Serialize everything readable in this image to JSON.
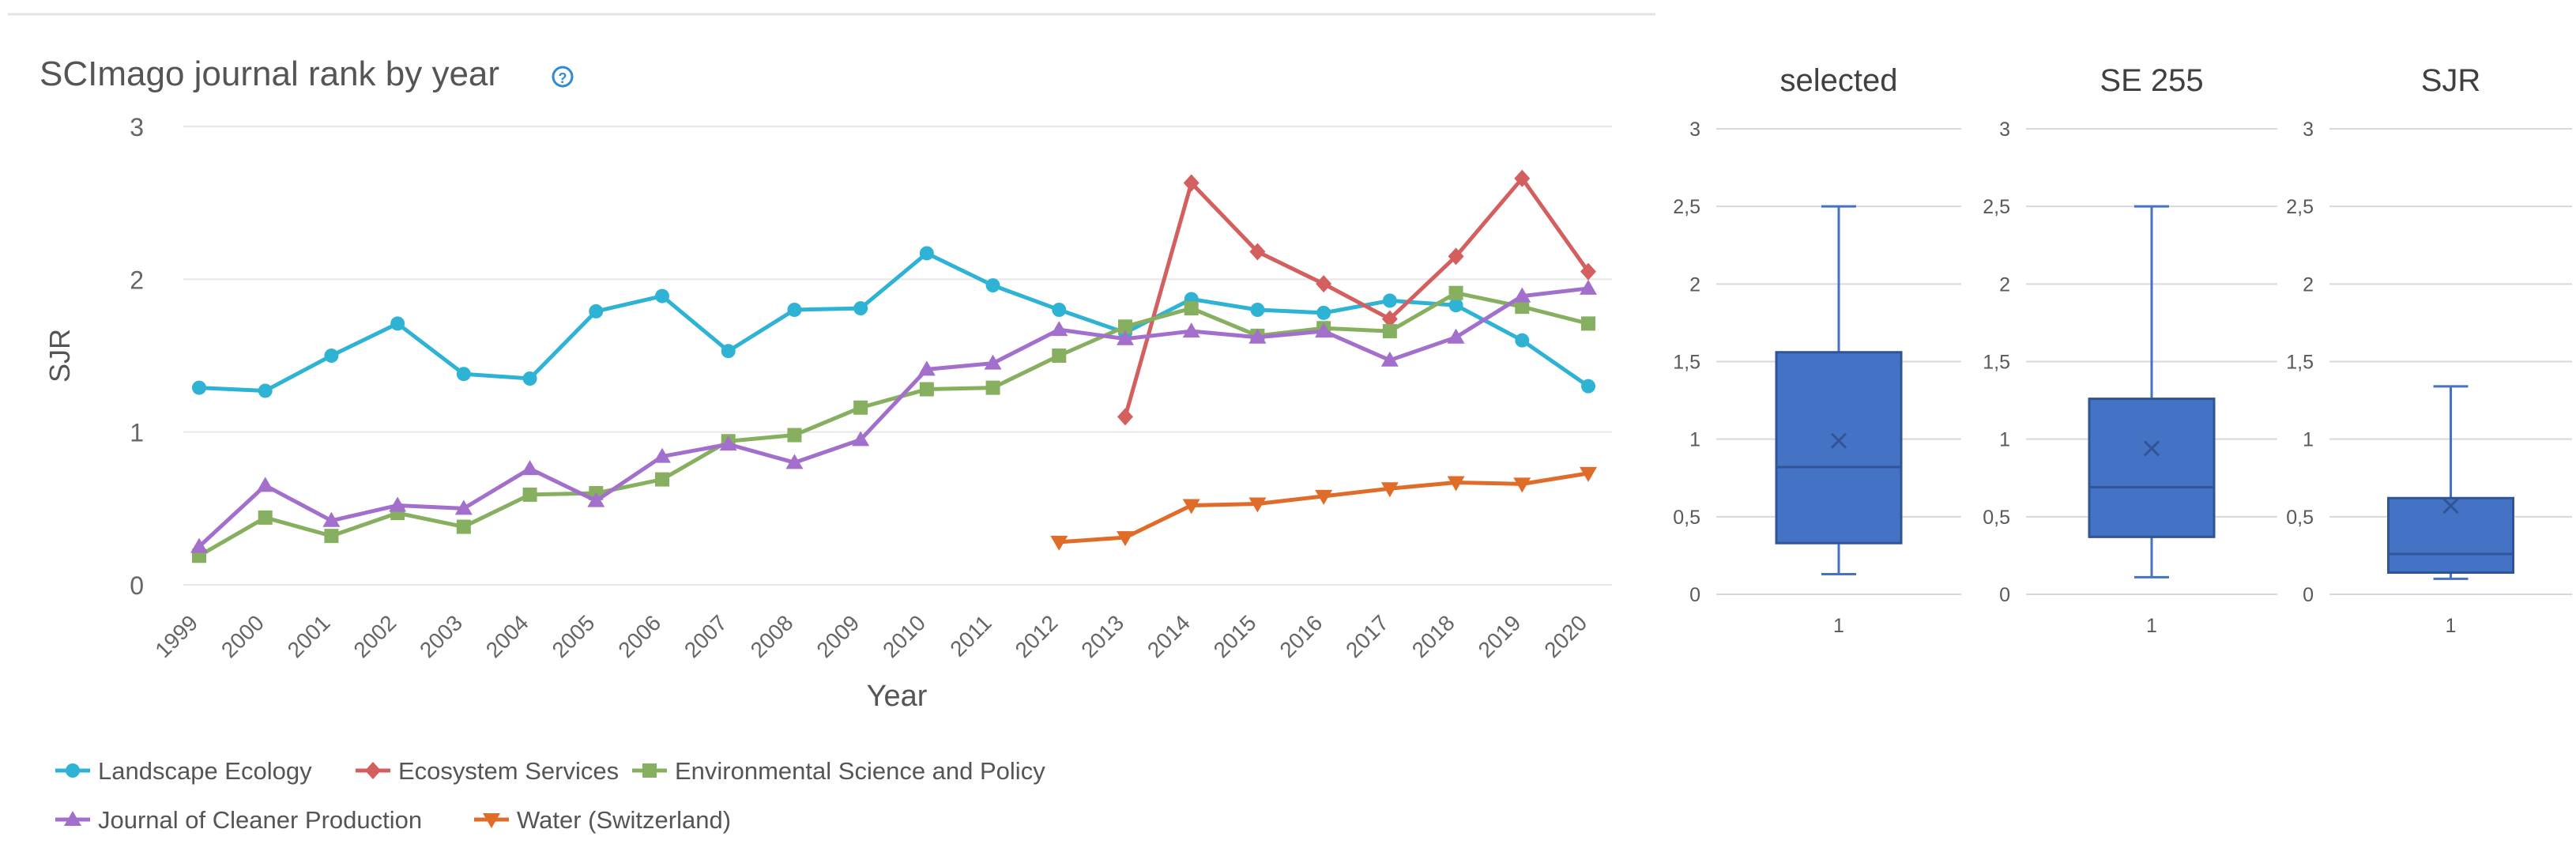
{
  "chart_data": [
    {
      "type": "line",
      "title": "SCImago journal rank by year",
      "info_icon": "info-circle-icon",
      "xlabel": "Year",
      "ylabel": "SJR",
      "ylim": [
        0,
        3
      ],
      "yticks": [
        0,
        1,
        2,
        3
      ],
      "grid": true,
      "legend_position": "bottom",
      "categories": [
        "1999",
        "2000",
        "2001",
        "2002",
        "2003",
        "2004",
        "2005",
        "2006",
        "2007",
        "2008",
        "2009",
        "2010",
        "2011",
        "2012",
        "2013",
        "2014",
        "2015",
        "2016",
        "2017",
        "2018",
        "2019",
        "2020"
      ],
      "series": [
        {
          "name": "Landscape Ecology",
          "color": "#2fb3d4",
          "marker": "circle",
          "values": [
            1.29,
            1.27,
            1.5,
            1.71,
            1.38,
            1.35,
            1.79,
            1.89,
            1.53,
            1.8,
            1.81,
            2.17,
            1.96,
            1.8,
            1.65,
            1.87,
            1.8,
            1.78,
            1.86,
            1.83,
            1.6,
            1.3
          ]
        },
        {
          "name": "Ecosystem Services",
          "color": "#d35f5f",
          "marker": "diamond",
          "values": [
            null,
            null,
            null,
            null,
            null,
            null,
            null,
            null,
            null,
            null,
            null,
            null,
            null,
            null,
            1.1,
            2.63,
            2.18,
            1.97,
            1.74,
            2.15,
            2.66,
            2.05
          ]
        },
        {
          "name": "Environmental Science and Policy",
          "color": "#86b05f",
          "marker": "square",
          "values": [
            0.19,
            0.44,
            0.32,
            0.47,
            0.38,
            0.59,
            0.6,
            0.69,
            0.94,
            0.98,
            1.16,
            1.28,
            1.29,
            1.5,
            1.69,
            1.81,
            1.63,
            1.68,
            1.66,
            1.91,
            1.82,
            1.71
          ]
        },
        {
          "name": "Journal of Cleaner Production",
          "color": "#a36fcc",
          "marker": "triangle-up",
          "values": [
            0.25,
            0.65,
            0.42,
            0.52,
            0.5,
            0.76,
            0.55,
            0.84,
            0.92,
            0.8,
            0.95,
            1.41,
            1.45,
            1.67,
            1.61,
            1.66,
            1.62,
            1.66,
            1.47,
            1.62,
            1.89,
            1.94
          ]
        },
        {
          "name": "Water (Switzerland)",
          "color": "#e06c2a",
          "marker": "triangle-down",
          "values": [
            null,
            null,
            null,
            null,
            null,
            null,
            null,
            null,
            null,
            null,
            null,
            null,
            null,
            0.28,
            0.31,
            0.52,
            0.53,
            0.58,
            0.63,
            0.67,
            0.66,
            0.73
          ]
        }
      ]
    },
    {
      "type": "boxplot",
      "title": "selected",
      "category": "1",
      "ylim": [
        0,
        3
      ],
      "ytick_labels": [
        "0",
        "0,5",
        "1",
        "1,5",
        "2",
        "2,5",
        "3"
      ],
      "min": 0.13,
      "q1": 0.33,
      "median": 0.82,
      "mean": 0.99,
      "q3": 1.56,
      "max": 2.5
    },
    {
      "type": "boxplot",
      "title": "SE 255",
      "category": "1",
      "ylim": [
        0,
        3
      ],
      "ytick_labels": [
        "0",
        "0,5",
        "1",
        "1,5",
        "2",
        "2,5",
        "3"
      ],
      "min": 0.11,
      "q1": 0.37,
      "median": 0.69,
      "mean": 0.94,
      "q3": 1.26,
      "max": 2.5
    },
    {
      "type": "boxplot",
      "title": "SJR",
      "category": "1",
      "ylim": [
        0,
        3
      ],
      "ytick_labels": [
        "0",
        "0,5",
        "1",
        "1,5",
        "2",
        "2,5",
        "3"
      ],
      "min": 0.1,
      "q1": 0.14,
      "median": 0.26,
      "mean": 0.57,
      "q3": 0.62,
      "max": 1.34
    }
  ]
}
